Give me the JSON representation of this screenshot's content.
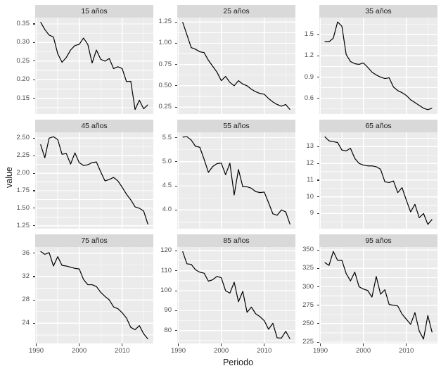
{
  "figure": {
    "background": "#FFFFFF",
    "panel_background": "#EBEBEB",
    "strip_background": "#D9D9D9",
    "grid_color": "#FFFFFF",
    "line_color": "#000000",
    "axis_text_color": "#4D4D4D",
    "tick_mark_color": "#333333"
  },
  "chart_data": {
    "type": "line",
    "title": "",
    "xlabel": "Periodo",
    "ylabel": "value",
    "legend": "none",
    "grid": "on",
    "facet_layout": [
      3,
      3
    ],
    "x": [
      1991,
      1992,
      1993,
      1994,
      1995,
      1996,
      1997,
      1998,
      1999,
      2000,
      2001,
      2002,
      2003,
      2004,
      2005,
      2006,
      2007,
      2008,
      2009,
      2010,
      2011,
      2012,
      2013,
      2014,
      2015,
      2016
    ],
    "xlim": [
      1989.75,
      2017.25
    ],
    "xticks": [
      1990,
      2000,
      2010
    ],
    "xtick_labels": [
      "1990",
      "2000",
      "2010"
    ],
    "facets": [
      {
        "label": "15 años",
        "ylim": [
          0.108,
          0.367
        ],
        "yticks": [
          0.15,
          0.2,
          0.25,
          0.3,
          0.35
        ],
        "ytick_labels": [
          "0.15",
          "0.20",
          "0.25",
          "0.30",
          "0.35"
        ],
        "values": [
          0.355,
          0.335,
          0.32,
          0.315,
          0.27,
          0.247,
          0.26,
          0.28,
          0.292,
          0.295,
          0.312,
          0.295,
          0.245,
          0.28,
          0.255,
          0.25,
          0.257,
          0.23,
          0.235,
          0.23,
          0.195,
          0.196,
          0.12,
          0.145,
          0.122,
          0.133
        ]
      },
      {
        "label": "25 años",
        "ylim": [
          0.168,
          1.302
        ],
        "yticks": [
          0.25,
          0.5,
          0.75,
          1.0,
          1.25
        ],
        "ytick_labels": [
          "0.25",
          "0.50",
          "0.75",
          "1.00",
          "1.25"
        ],
        "values": [
          1.25,
          1.1,
          0.95,
          0.93,
          0.9,
          0.89,
          0.8,
          0.73,
          0.66,
          0.56,
          0.61,
          0.54,
          0.5,
          0.56,
          0.52,
          0.5,
          0.46,
          0.43,
          0.41,
          0.4,
          0.35,
          0.31,
          0.28,
          0.26,
          0.28,
          0.22
        ]
      },
      {
        "label": "35 años",
        "ylim": [
          0.378,
          1.742
        ],
        "yticks": [
          0.6,
          0.9,
          1.2,
          1.5
        ],
        "ytick_labels": [
          "0.6",
          "0.9",
          "1.2",
          "1.5"
        ],
        "values": [
          1.4,
          1.4,
          1.45,
          1.68,
          1.62,
          1.22,
          1.12,
          1.09,
          1.08,
          1.1,
          1.04,
          0.97,
          0.93,
          0.9,
          0.88,
          0.89,
          0.76,
          0.71,
          0.68,
          0.64,
          0.58,
          0.54,
          0.5,
          0.46,
          0.44,
          0.46
        ]
      },
      {
        "label": "45 años",
        "ylim": [
          1.208,
          2.583
        ],
        "yticks": [
          1.25,
          1.5,
          1.75,
          2.0,
          2.25,
          2.5
        ],
        "ytick_labels": [
          "1.25",
          "1.50",
          "1.75",
          "2.00",
          "2.25",
          "2.50"
        ],
        "values": [
          2.41,
          2.22,
          2.5,
          2.52,
          2.48,
          2.27,
          2.28,
          2.13,
          2.29,
          2.15,
          2.11,
          2.12,
          2.15,
          2.16,
          2.02,
          1.89,
          1.91,
          1.94,
          1.89,
          1.8,
          1.7,
          1.62,
          1.52,
          1.5,
          1.46,
          1.27
        ]
      },
      {
        "label": "55 años",
        "ylim": [
          3.61,
          5.61
        ],
        "yticks": [
          4.0,
          4.5,
          5.0,
          5.5
        ],
        "ytick_labels": [
          "4.0",
          "4.5",
          "5.0",
          "5.5"
        ],
        "values": [
          5.51,
          5.52,
          5.45,
          5.32,
          5.3,
          5.05,
          4.78,
          4.9,
          4.96,
          4.97,
          4.73,
          4.97,
          4.31,
          4.84,
          4.48,
          4.48,
          4.45,
          4.38,
          4.36,
          4.37,
          4.15,
          3.92,
          3.89,
          4.0,
          3.96,
          3.7
        ]
      },
      {
        "label": "65 años",
        "ylim": [
          8.09,
          13.86
        ],
        "yticks": [
          9,
          10,
          11,
          12,
          13
        ],
        "ytick_labels": [
          "9",
          "10",
          "11",
          "12",
          "13"
        ],
        "values": [
          13.6,
          13.35,
          13.3,
          13.25,
          12.8,
          12.75,
          12.9,
          12.3,
          12.0,
          11.9,
          11.85,
          11.85,
          11.8,
          11.65,
          10.9,
          10.85,
          10.95,
          10.25,
          10.55,
          9.8,
          9.1,
          9.55,
          8.75,
          9.0,
          8.35,
          8.65
        ]
      },
      {
        "label": "75 años",
        "ylim": [
          20.55,
          37.05
        ],
        "yticks": [
          24,
          28,
          32,
          36
        ],
        "ytick_labels": [
          "24",
          "28",
          "32",
          "36"
        ],
        "values": [
          36.3,
          35.8,
          36.1,
          33.8,
          35.4,
          33.9,
          33.8,
          33.6,
          33.4,
          33.3,
          31.5,
          30.6,
          30.6,
          30.3,
          29.3,
          28.6,
          28.0,
          26.8,
          26.5,
          25.8,
          24.9,
          23.3,
          22.9,
          23.6,
          22.2,
          21.3
        ]
      },
      {
        "label": "85 años",
        "ylim": [
          73.6,
          121.9
        ],
        "yticks": [
          80,
          90,
          100,
          110,
          120
        ],
        "ytick_labels": [
          "80",
          "90",
          "100",
          "110",
          "120"
        ],
        "values": [
          119.7,
          113.5,
          113.2,
          110.5,
          109.3,
          108.8,
          104.8,
          105.5,
          107.2,
          106.5,
          100.0,
          98.8,
          104.3,
          94.5,
          99.7,
          89.2,
          91.8,
          88.5,
          87.0,
          85.0,
          80.7,
          83.7,
          76.4,
          76.3,
          79.7,
          75.8
        ]
      },
      {
        "label": "95 años",
        "ylim": [
          223.1,
          354.0
        ],
        "yticks": [
          225,
          250,
          275,
          300,
          325,
          350
        ],
        "ytick_labels": [
          "225",
          "250",
          "275",
          "300",
          "325",
          "350"
        ],
        "values": [
          333,
          329,
          348,
          336,
          336,
          318,
          308,
          320,
          300,
          297,
          295,
          286,
          314,
          290,
          296,
          276,
          275,
          274,
          263,
          256,
          249,
          265,
          240,
          229,
          261,
          238
        ]
      }
    ]
  }
}
